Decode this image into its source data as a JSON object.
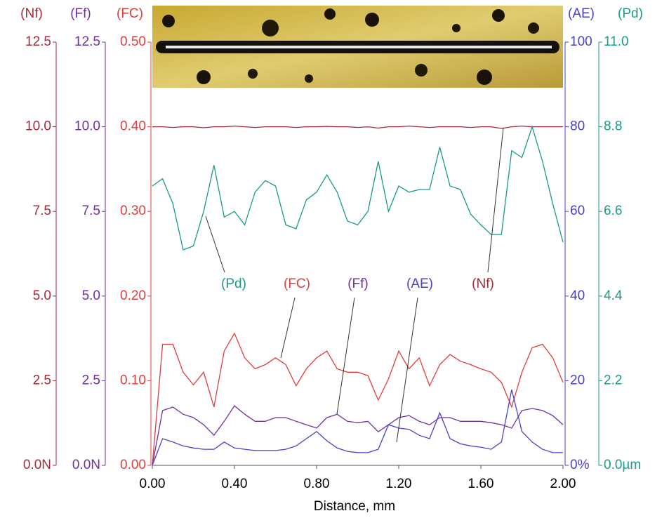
{
  "chart_data": {
    "type": "line",
    "xlabel": "Distance, mm",
    "xlim": [
      0,
      2
    ],
    "xticks": [
      {
        "value": 0,
        "label": "0.00"
      },
      {
        "value": 0.4,
        "label": "0.40"
      },
      {
        "value": 0.8,
        "label": "0.80"
      },
      {
        "value": 1.2,
        "label": "1.20"
      },
      {
        "value": 1.6,
        "label": "1.60"
      },
      {
        "value": 2,
        "label": "2.00"
      }
    ],
    "x": [
      0,
      0.05,
      0.1,
      0.15,
      0.2,
      0.25,
      0.3,
      0.35,
      0.4,
      0.45,
      0.5,
      0.55,
      0.6,
      0.65,
      0.7,
      0.75,
      0.8,
      0.85,
      0.9,
      0.95,
      1.0,
      1.05,
      1.1,
      1.15,
      1.2,
      1.25,
      1.3,
      1.35,
      1.4,
      1.45,
      1.5,
      1.55,
      1.6,
      1.65,
      1.7,
      1.75,
      1.8,
      1.85,
      1.9,
      1.95,
      2.0
    ],
    "axes": [
      {
        "label": "(Nf)",
        "color": "#a52a3a",
        "side": "left",
        "lim": [
          0,
          12.5
        ],
        "ticks": [
          {
            "value": 0,
            "label": "0.0N"
          },
          2.5,
          {
            "value": 5,
            "label": "5.0"
          },
          7.5,
          {
            "value": 10,
            "label": "10.0"
          },
          12.5
        ]
      },
      {
        "label": "(Ff)",
        "color": "#7030a0",
        "side": "left",
        "lim": [
          0,
          12.5
        ],
        "ticks": [
          {
            "value": 0,
            "label": "0.0N"
          },
          2.5,
          {
            "value": 5,
            "label": "5.0"
          },
          7.5,
          {
            "value": 10,
            "label": "10.0"
          },
          12.5
        ]
      },
      {
        "label": "(FC)",
        "color": "#e03c3c",
        "side": "left",
        "lim": [
          0,
          0.5
        ],
        "ticks": [
          {
            "value": 0,
            "label": "0.00"
          },
          {
            "value": 0.1,
            "label": "0.10"
          },
          {
            "value": 0.2,
            "label": "0.20"
          },
          {
            "value": 0.3,
            "label": "0.30"
          },
          {
            "value": 0.4,
            "label": "0.40"
          },
          {
            "value": 0.5,
            "label": "0.50"
          }
        ]
      },
      {
        "label": "(AE)",
        "color": "#4a40c8",
        "side": "right",
        "lim": [
          0,
          100
        ],
        "ticks": [
          {
            "value": 0,
            "label": "0%"
          },
          20,
          40,
          60,
          80,
          100
        ]
      },
      {
        "label": "(Pd)",
        "color": "#1a9a8a",
        "side": "right",
        "lim": [
          0,
          11
        ],
        "ticks": [
          {
            "value": 0,
            "label": "0.0µm"
          },
          2.2,
          4.4,
          6.6,
          8.8,
          {
            "value": 11,
            "label": "11.0"
          }
        ]
      }
    ],
    "series": [
      {
        "name": "(Nf)",
        "axis": 0,
        "color": "#a52a3a",
        "values": [
          10.0,
          10.0,
          9.98,
          10.0,
          10.0,
          9.97,
          10.0,
          10.0,
          10.02,
          10.0,
          9.98,
          10.0,
          10.0,
          10.0,
          9.98,
          10.0,
          10.0,
          10.01,
          10.0,
          10.0,
          9.98,
          10.0,
          9.96,
          10.0,
          10.0,
          10.02,
          10.0,
          9.98,
          10.0,
          10.0,
          10.0,
          9.98,
          10.0,
          10.0,
          9.95,
          10.0,
          10.02,
          10.0,
          10.0,
          10.0,
          10.0
        ]
      },
      {
        "name": "(Ff)",
        "axis": 1,
        "color": "#7030a0",
        "values": [
          0,
          1.62,
          1.72,
          1.51,
          1.41,
          1.2,
          0.89,
          1.3,
          1.76,
          1.51,
          1.3,
          1.3,
          1.41,
          1.41,
          1.3,
          1.2,
          1.1,
          1.41,
          1.51,
          1.3,
          1.26,
          1.3,
          0.99,
          1.2,
          1.41,
          1.47,
          1.3,
          1.2,
          1.41,
          1.41,
          1.3,
          1.3,
          1.3,
          1.26,
          1.2,
          1.1,
          1.62,
          1.68,
          1.62,
          1.47,
          1.2
        ]
      },
      {
        "name": "(FC)",
        "axis": 2,
        "color": "#e03c3c",
        "values": [
          0,
          0.143,
          0.143,
          0.11,
          0.095,
          0.11,
          0.069,
          0.135,
          0.156,
          0.127,
          0.114,
          0.119,
          0.127,
          0.119,
          0.094,
          0.114,
          0.127,
          0.135,
          0.114,
          0.11,
          0.11,
          0.106,
          0.077,
          0.102,
          0.135,
          0.114,
          0.127,
          0.094,
          0.119,
          0.131,
          0.123,
          0.119,
          0.114,
          0.11,
          0.098,
          0.069,
          0.11,
          0.139,
          0.143,
          0.127,
          0.098
        ]
      },
      {
        "name": "(AE)",
        "axis": 3,
        "color": "#4a40c8",
        "values": [
          0,
          6.3,
          5.5,
          4.6,
          4.1,
          3.8,
          3.8,
          5.5,
          4.1,
          3.8,
          3.5,
          3.5,
          3.5,
          3.8,
          4.6,
          6.3,
          8.0,
          5.8,
          4.1,
          3.3,
          3.0,
          3.0,
          3.8,
          9.6,
          8.8,
          8.5,
          7.1,
          6.3,
          12.4,
          6.3,
          5.1,
          4.6,
          4.3,
          3.8,
          5.5,
          17.9,
          8.0,
          5.5,
          3.8,
          3.0,
          3.0
        ]
      },
      {
        "name": "(Pd)",
        "axis": 4,
        "color": "#1a9a8a",
        "values": [
          7.26,
          7.45,
          6.8,
          5.6,
          5.7,
          6.6,
          7.8,
          6.45,
          6.6,
          6.25,
          7.1,
          7.4,
          7.26,
          6.25,
          6.15,
          6.9,
          7.1,
          7.55,
          7.1,
          6.35,
          6.25,
          6.6,
          7.9,
          6.6,
          7.26,
          7.1,
          7.17,
          7.17,
          8.27,
          7.26,
          7.17,
          6.53,
          6.25,
          6.0,
          6.0,
          8.18,
          8.0,
          8.8,
          7.9,
          6.8,
          5.8
        ]
      }
    ]
  }
}
